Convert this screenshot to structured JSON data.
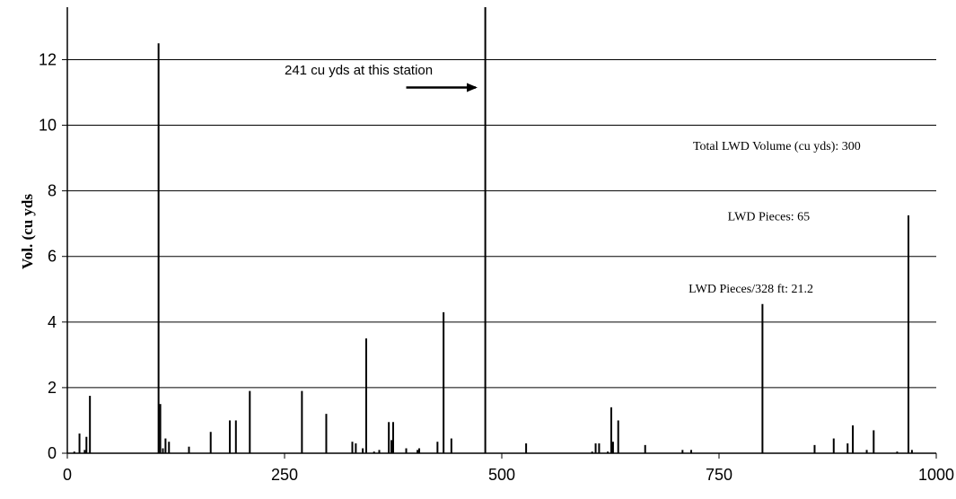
{
  "chart_data": {
    "type": "bar",
    "title": "",
    "xlabel": "",
    "ylabel": "Vol. (cu yds",
    "xlim": [
      0,
      1000
    ],
    "ylim": [
      0,
      13.6
    ],
    "x_ticks": [
      "0",
      "250",
      "500",
      "750",
      "1000"
    ],
    "y_ticks": [
      "0",
      "2",
      "4",
      "6",
      "8",
      "10",
      "12"
    ],
    "grid": "horizontal",
    "legend": "none",
    "bar_color": "#000000",
    "points": [
      {
        "x": 8,
        "y": 0.05
      },
      {
        "x": 14,
        "y": 0.6
      },
      {
        "x": 20,
        "y": 0.1
      },
      {
        "x": 22,
        "y": 0.5
      },
      {
        "x": 26,
        "y": 1.75
      },
      {
        "x": 105,
        "y": 12.5
      },
      {
        "x": 107,
        "y": 1.5
      },
      {
        "x": 110,
        "y": 0.15
      },
      {
        "x": 113,
        "y": 0.45
      },
      {
        "x": 117,
        "y": 0.35
      },
      {
        "x": 140,
        "y": 0.2
      },
      {
        "x": 165,
        "y": 0.65
      },
      {
        "x": 187,
        "y": 1.0
      },
      {
        "x": 194,
        "y": 1.0
      },
      {
        "x": 210,
        "y": 1.9
      },
      {
        "x": 270,
        "y": 1.9
      },
      {
        "x": 298,
        "y": 1.2
      },
      {
        "x": 328,
        "y": 0.35
      },
      {
        "x": 332,
        "y": 0.3
      },
      {
        "x": 340,
        "y": 0.15
      },
      {
        "x": 344,
        "y": 3.5
      },
      {
        "x": 353,
        "y": 0.05
      },
      {
        "x": 359,
        "y": 0.1
      },
      {
        "x": 370,
        "y": 0.95
      },
      {
        "x": 373,
        "y": 0.4
      },
      {
        "x": 375,
        "y": 0.95
      },
      {
        "x": 390,
        "y": 0.15
      },
      {
        "x": 403,
        "y": 0.1
      },
      {
        "x": 405,
        "y": 0.15
      },
      {
        "x": 426,
        "y": 0.35
      },
      {
        "x": 433,
        "y": 4.3
      },
      {
        "x": 442,
        "y": 0.45
      },
      {
        "x": 481,
        "y": 13.6
      },
      {
        "x": 528,
        "y": 0.3
      },
      {
        "x": 604,
        "y": 0.05
      },
      {
        "x": 608,
        "y": 0.3
      },
      {
        "x": 612,
        "y": 0.3
      },
      {
        "x": 622,
        "y": 0.05
      },
      {
        "x": 626,
        "y": 1.4
      },
      {
        "x": 628,
        "y": 0.35
      },
      {
        "x": 634,
        "y": 1.0
      },
      {
        "x": 665,
        "y": 0.25
      },
      {
        "x": 708,
        "y": 0.1
      },
      {
        "x": 718,
        "y": 0.1
      },
      {
        "x": 800,
        "y": 4.55
      },
      {
        "x": 860,
        "y": 0.25
      },
      {
        "x": 882,
        "y": 0.45
      },
      {
        "x": 898,
        "y": 0.3
      },
      {
        "x": 904,
        "y": 0.85
      },
      {
        "x": 920,
        "y": 0.1
      },
      {
        "x": 928,
        "y": 0.7
      },
      {
        "x": 955,
        "y": 0.05
      },
      {
        "x": 968,
        "y": 7.25
      },
      {
        "x": 972,
        "y": 0.1
      }
    ],
    "annotations": [
      {
        "text": "241 cu yds at this station",
        "x": 250,
        "y": 11.55,
        "style": "sans",
        "arrow_from": [
          390,
          11.15
        ],
        "arrow_to": [
          470,
          11.15
        ]
      },
      {
        "text": "Total LWD Volume (cu yds): 300",
        "x": 720,
        "y": 9.25,
        "style": "serif"
      },
      {
        "text": "LWD Pieces: 65",
        "x": 760,
        "y": 7.1,
        "style": "serif"
      },
      {
        "text": "LWD Pieces/328 ft: 21.2",
        "x": 715,
        "y": 4.9,
        "style": "serif"
      }
    ]
  }
}
